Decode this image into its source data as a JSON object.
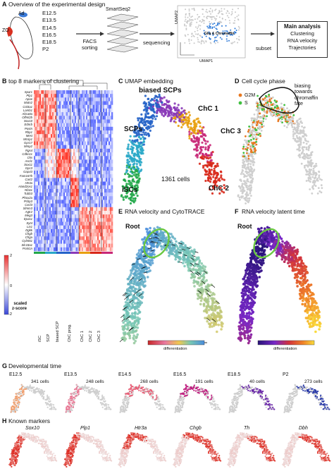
{
  "panelA": {
    "letter": "A",
    "title": "Overview of the experimental design",
    "ad_label": "Ad",
    "zo_label": "ZO",
    "stages": [
      "E12.5",
      "E13.5",
      "E14.5",
      "E16.5",
      "E18.5",
      "P2"
    ],
    "facs_label": "FACS\nsorting",
    "smartseq_label": "SmartSeq2",
    "sequencing_label": "sequencing",
    "umap2": "UMAP2",
    "umap1": "UMAP1",
    "glia_label": "Glia & Chromaffin",
    "subset_label": "subset",
    "main_analysis": "Main analysis",
    "analysis_items": [
      "Clustering",
      "RNA velocity",
      "Trajectories"
    ]
  },
  "panelB": {
    "letter": "B",
    "title": "top 8 markers of clustering",
    "genes": [
      "Sparc",
      "Plp1",
      "Apoe",
      "Matn2",
      "Col4a1",
      "Lamb1",
      "Abca8a",
      "Olfml2b",
      "Sox10",
      "Ednrb",
      "Postn",
      "Rbp1",
      "Mest",
      "Mcrip1",
      "Gpr17",
      "Mmp2",
      "Rgs4",
      "Cdkn1c",
      "Cks",
      "Ascl1",
      "Sox11",
      "Gpc3",
      "Gap43",
      "Fam167b",
      "Cart2",
      "Htr3a",
      "Hand2os1",
      "Nfasc",
      "Tubb3",
      "Phox2a",
      "Pcbp3",
      "Cxcl3",
      "Slmm3",
      "Agtr2",
      "Meg3",
      "Epas1",
      "Syt4",
      "Lix1",
      "Dgkk",
      "Chgb",
      "Chga",
      "Cyb561",
      "Slc18a1",
      "Pcsk1n"
    ],
    "legend_title": "scaled\nz-score",
    "legend_ticks": [
      "2",
      "0",
      "-2"
    ],
    "clusters": [
      "iSC",
      "SCP",
      "biased SCP",
      "ChC prog.",
      "ChC 1",
      "ChC 2",
      "ChC 3"
    ],
    "cluster_colors": [
      "#22a84a",
      "#2aa8c8",
      "#2563c8",
      "#8a3ab8",
      "#e8a010",
      "#d8281a",
      "#c82878"
    ]
  },
  "panelC": {
    "letter": "C",
    "title": "UMAP embedding",
    "labels": {
      "biased": "biased SCPs",
      "chc1": "ChC 1",
      "chc3": "ChC 3",
      "scps": "SCPs",
      "iscs": "iSCs",
      "chc2": "ChC 2",
      "cells": "1361 cells"
    }
  },
  "panelD": {
    "letter": "D",
    "title": "Cell cycle phase",
    "legend": [
      {
        "label": "G2M",
        "color": "#e87820"
      },
      {
        "label": "S",
        "color": "#40c040"
      }
    ],
    "annotation": "biasing\ntowards\nchromaffin\nfate"
  },
  "panelE": {
    "letter": "E",
    "title": "RNA velocity and CytoTRACE",
    "root": "Root",
    "differentiation": "differentiation"
  },
  "panelF": {
    "letter": "F",
    "title": "RNA velocity latent time",
    "root": "Root",
    "differentiation": "differentiation"
  },
  "panelG": {
    "letter": "G",
    "title": "Developmental time",
    "items": [
      {
        "stage": "E12.5",
        "cells": "341 cells",
        "color": "#f0a070"
      },
      {
        "stage": "E13.5",
        "cells": "248 cells",
        "color": "#e87a96"
      },
      {
        "stage": "E14.5",
        "cells": "268 cells",
        "color": "#e86078"
      },
      {
        "stage": "E16.5",
        "cells": "191 cells",
        "color": "#c02080"
      },
      {
        "stage": "E18.5",
        "cells": "40 cells",
        "color": "#6a28a8"
      },
      {
        "stage": "P2",
        "cells": "273 cells",
        "color": "#2a3aa8"
      }
    ]
  },
  "panelH": {
    "letter": "H",
    "title": "Known markers",
    "genes": [
      "Sox10",
      "Plp1",
      "Htr3a",
      "Chgb",
      "Th",
      "Dbh"
    ]
  }
}
